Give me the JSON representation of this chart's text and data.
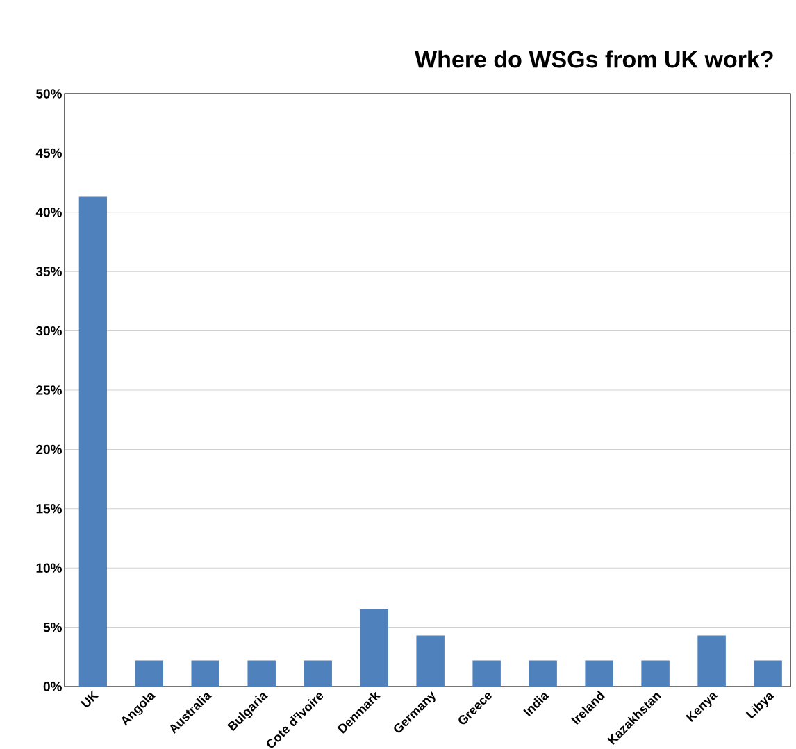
{
  "chart_data": {
    "type": "bar",
    "title": "Where do WSGs from UK work?",
    "categories": [
      "UK",
      "Angola",
      "Australia",
      "Bulgaria",
      "Cote d'Ivoire",
      "Denmark",
      "Germany",
      "Greece",
      "India",
      "Ireland",
      "Kazakhstan",
      "Kenya",
      "Libya"
    ],
    "values": [
      41.3,
      2.2,
      2.2,
      2.2,
      2.2,
      6.5,
      4.3,
      2.2,
      2.2,
      2.2,
      2.2,
      4.3,
      2.2
    ],
    "color": "#4f81bd",
    "ylim": [
      0,
      50
    ],
    "yticks": [
      {
        "value": 0,
        "label": "0%"
      },
      {
        "value": 5,
        "label": "5%"
      },
      {
        "value": 10,
        "label": "10%"
      },
      {
        "value": 15,
        "label": "15%"
      },
      {
        "value": 20,
        "label": "20%"
      },
      {
        "value": 25,
        "label": "25%"
      },
      {
        "value": 30,
        "label": "30%"
      },
      {
        "value": 35,
        "label": "35%"
      },
      {
        "value": 40,
        "label": "40%"
      },
      {
        "value": 45,
        "label": "45%"
      },
      {
        "value": 50,
        "label": "50%"
      }
    ],
    "grid": "y"
  }
}
